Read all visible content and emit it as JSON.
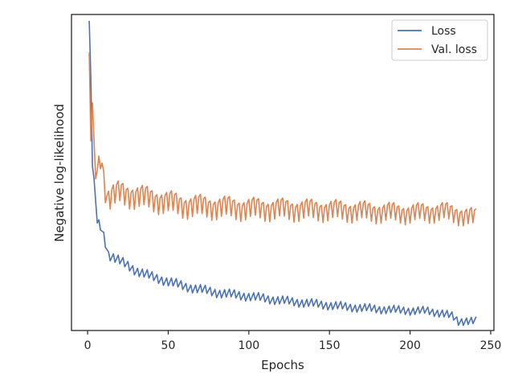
{
  "chart_data": {
    "type": "line",
    "xlabel": "Epochs",
    "ylabel": "Negative log-likelihood",
    "xlim": [
      -10,
      252
    ],
    "ylim": [
      0,
      100
    ],
    "y_tick_labels_shown": false,
    "x_ticks": [
      0,
      50,
      100,
      150,
      200,
      250
    ],
    "x_tick_labels": [
      "0",
      "50",
      "100",
      "150",
      "200",
      "250"
    ],
    "grid": false,
    "legend_position": "top-right",
    "x": {
      "start": 1,
      "end": 241
    },
    "series": [
      {
        "name": "Loss",
        "color": "#4c72b0",
        "anchors": [
          [
            1,
            98
          ],
          [
            2,
            80
          ],
          [
            3,
            52
          ],
          [
            4,
            48
          ],
          [
            6,
            34
          ],
          [
            8,
            33
          ],
          [
            10,
            30
          ],
          [
            13,
            24
          ],
          [
            20,
            22
          ],
          [
            30,
            19
          ],
          [
            40,
            17
          ],
          [
            50,
            15.5
          ],
          [
            60,
            14
          ],
          [
            80,
            12
          ],
          [
            100,
            10.8
          ],
          [
            120,
            9.5
          ],
          [
            140,
            8.5
          ],
          [
            160,
            7.5
          ],
          [
            180,
            6.8
          ],
          [
            200,
            6.3
          ],
          [
            210,
            6.2
          ],
          [
            220,
            5.5
          ],
          [
            226,
            4.5
          ],
          [
            230,
            2.8
          ],
          [
            235,
            3.2
          ],
          [
            241,
            3.0
          ]
        ],
        "oscillation": {
          "amplitude": [
            1.5,
            1.2
          ],
          "period": 3
        }
      },
      {
        "name": "Val. loss",
        "color": "#dd8452",
        "anchors": [
          [
            1,
            88
          ],
          [
            2,
            60
          ],
          [
            3,
            72
          ],
          [
            5,
            48
          ],
          [
            8,
            56
          ],
          [
            12,
            42
          ],
          [
            20,
            44
          ],
          [
            40,
            42
          ],
          [
            60,
            40
          ],
          [
            100,
            39
          ],
          [
            150,
            38.5
          ],
          [
            200,
            37.5
          ],
          [
            220,
            38
          ],
          [
            241,
            36
          ]
        ],
        "oscillation": {
          "amplitude": [
            4,
            3
          ],
          "period": 3
        }
      }
    ]
  }
}
